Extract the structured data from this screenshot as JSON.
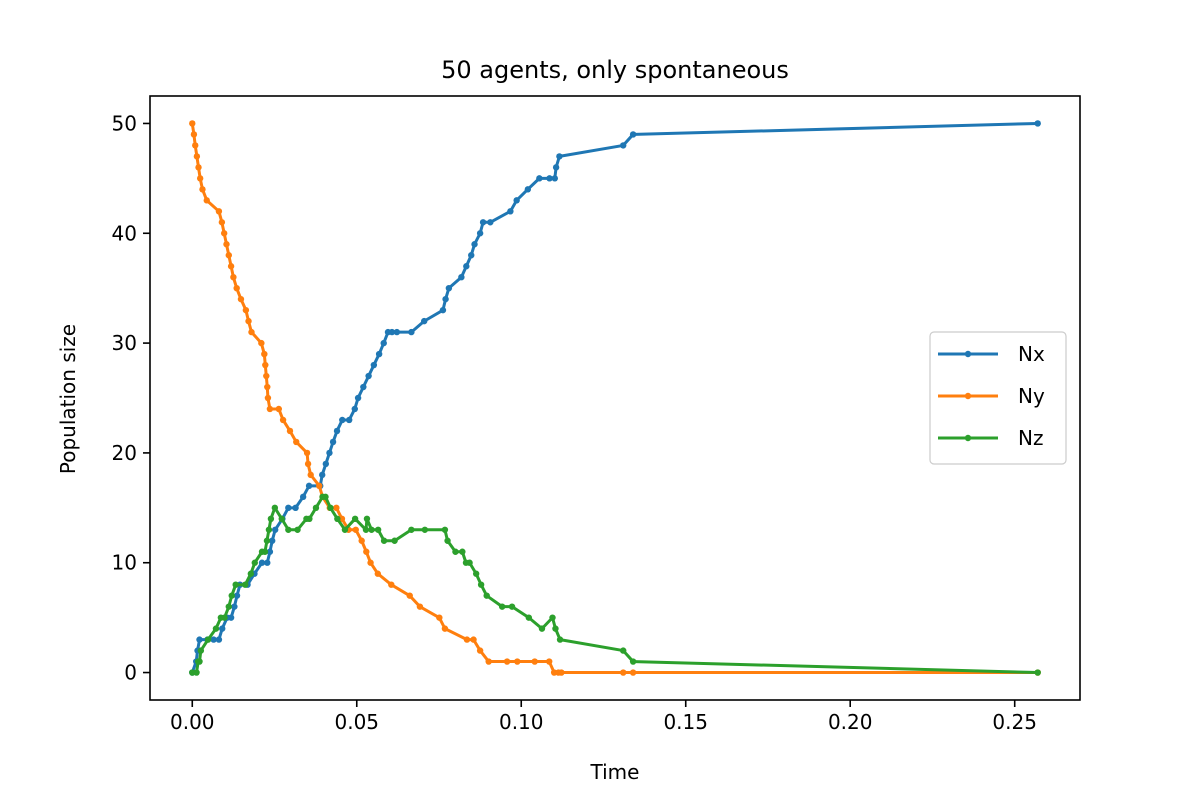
{
  "chart_data": {
    "type": "line",
    "title": "50 agents, only spontaneous",
    "xlabel": "Time",
    "ylabel": "Population size",
    "xlim": [
      -0.01285,
      0.26985
    ],
    "ylim": [
      -2.5,
      52.5
    ],
    "xticks": [
      0.0,
      0.05,
      0.1,
      0.15,
      0.2,
      0.25
    ],
    "xtick_labels": [
      "0.00",
      "0.05",
      "0.10",
      "0.15",
      "0.20",
      "0.25"
    ],
    "yticks": [
      0,
      10,
      20,
      30,
      40,
      50
    ],
    "ytick_labels": [
      "0",
      "10",
      "20",
      "30",
      "40",
      "50"
    ],
    "grid": false,
    "legend_position": "center-right",
    "series": [
      {
        "name": "Nx",
        "color": "#1f77b4",
        "x": [
          0.0,
          0.0012,
          0.0016,
          0.0022,
          0.0046,
          0.0065,
          0.0081,
          0.0091,
          0.0106,
          0.0118,
          0.0128,
          0.0136,
          0.0145,
          0.0168,
          0.0189,
          0.0212,
          0.0228,
          0.0236,
          0.0243,
          0.0252,
          0.0274,
          0.0292,
          0.0314,
          0.0337,
          0.0355,
          0.0389,
          0.0395,
          0.0406,
          0.0417,
          0.0428,
          0.044,
          0.0456,
          0.0477,
          0.0494,
          0.0504,
          0.052,
          0.0536,
          0.0552,
          0.0568,
          0.0582,
          0.0595,
          0.0607,
          0.0622,
          0.0666,
          0.0705,
          0.0762,
          0.077,
          0.078,
          0.0818,
          0.0833,
          0.0848,
          0.0858,
          0.0875,
          0.0884,
          0.0906,
          0.0967,
          0.0986,
          0.102,
          0.1055,
          0.1086,
          0.1102,
          0.1106,
          0.1116,
          0.131,
          0.134,
          0.257
        ],
        "y": [
          0,
          1,
          2,
          3,
          3,
          3,
          3,
          4,
          5,
          5,
          6,
          7,
          8,
          8,
          9,
          10,
          10,
          11,
          12,
          13,
          14,
          15,
          15,
          16,
          17,
          17,
          18,
          19,
          20,
          21,
          22,
          23,
          23,
          24,
          25,
          26,
          27,
          28,
          29,
          30,
          31,
          31,
          31,
          31,
          32,
          33,
          34,
          35,
          36,
          37,
          38,
          39,
          40,
          41,
          41,
          42,
          43,
          44,
          45,
          45,
          45,
          46,
          47,
          48,
          49,
          50
        ]
      },
      {
        "name": "Ny",
        "color": "#ff7f0e",
        "x": [
          0.0,
          0.0005,
          0.0009,
          0.0014,
          0.0019,
          0.0024,
          0.0031,
          0.0044,
          0.0081,
          0.009,
          0.0097,
          0.0104,
          0.0111,
          0.0118,
          0.0125,
          0.0135,
          0.0148,
          0.0163,
          0.0171,
          0.018,
          0.021,
          0.0219,
          0.0222,
          0.0225,
          0.0228,
          0.023,
          0.0236,
          0.0263,
          0.0276,
          0.0297,
          0.0316,
          0.0349,
          0.0352,
          0.036,
          0.0386,
          0.0396,
          0.0418,
          0.0438,
          0.0455,
          0.0475,
          0.0497,
          0.0515,
          0.0529,
          0.0542,
          0.0564,
          0.0605,
          0.0661,
          0.0692,
          0.0751,
          0.0768,
          0.0835,
          0.0855,
          0.0875,
          0.0901,
          0.0957,
          0.0988,
          0.1041,
          0.1085,
          0.11,
          0.1113,
          0.1122,
          0.131,
          0.134,
          0.257
        ],
        "y": [
          50,
          49,
          48,
          47,
          46,
          45,
          44,
          43,
          42,
          41,
          40,
          39,
          38,
          37,
          36,
          35,
          34,
          33,
          32,
          31,
          30,
          29,
          28,
          27,
          26,
          25,
          24,
          24,
          23,
          22,
          21,
          20,
          19,
          18,
          17,
          16,
          15,
          15,
          14,
          13,
          13,
          12,
          11,
          10,
          9,
          8,
          7,
          6,
          5,
          4,
          3,
          3,
          2,
          1,
          1,
          1,
          1,
          1,
          0,
          0,
          0,
          0,
          0,
          0
        ]
      },
      {
        "name": "Nz",
        "color": "#2ca02c",
        "x": [
          0.0,
          0.0013,
          0.0018,
          0.0022,
          0.0026,
          0.0048,
          0.0072,
          0.0087,
          0.0098,
          0.0111,
          0.012,
          0.0132,
          0.0161,
          0.0178,
          0.019,
          0.0212,
          0.0221,
          0.0227,
          0.0233,
          0.0239,
          0.0251,
          0.0272,
          0.0292,
          0.032,
          0.0347,
          0.0356,
          0.0376,
          0.0396,
          0.0405,
          0.042,
          0.0441,
          0.0464,
          0.0495,
          0.0528,
          0.0531,
          0.0545,
          0.0565,
          0.0583,
          0.0615,
          0.0666,
          0.0707,
          0.0768,
          0.0776,
          0.08,
          0.0821,
          0.0832,
          0.0843,
          0.0863,
          0.0878,
          0.0895,
          0.0942,
          0.0972,
          0.1023,
          0.1063,
          0.1095,
          0.1104,
          0.1118,
          0.131,
          0.134,
          0.257
        ],
        "y": [
          0,
          0,
          1,
          1,
          2,
          3,
          4,
          5,
          5,
          6,
          7,
          8,
          8,
          9,
          10,
          11,
          11,
          12,
          13,
          14,
          15,
          14,
          13,
          13,
          14,
          14,
          15,
          16,
          16,
          15,
          14,
          13,
          14,
          13,
          14,
          13,
          13,
          12,
          12,
          13,
          13,
          13,
          12,
          11,
          11,
          10,
          10,
          9,
          8,
          7,
          6,
          6,
          5,
          4,
          5,
          4,
          3,
          2,
          1,
          0
        ]
      }
    ]
  }
}
